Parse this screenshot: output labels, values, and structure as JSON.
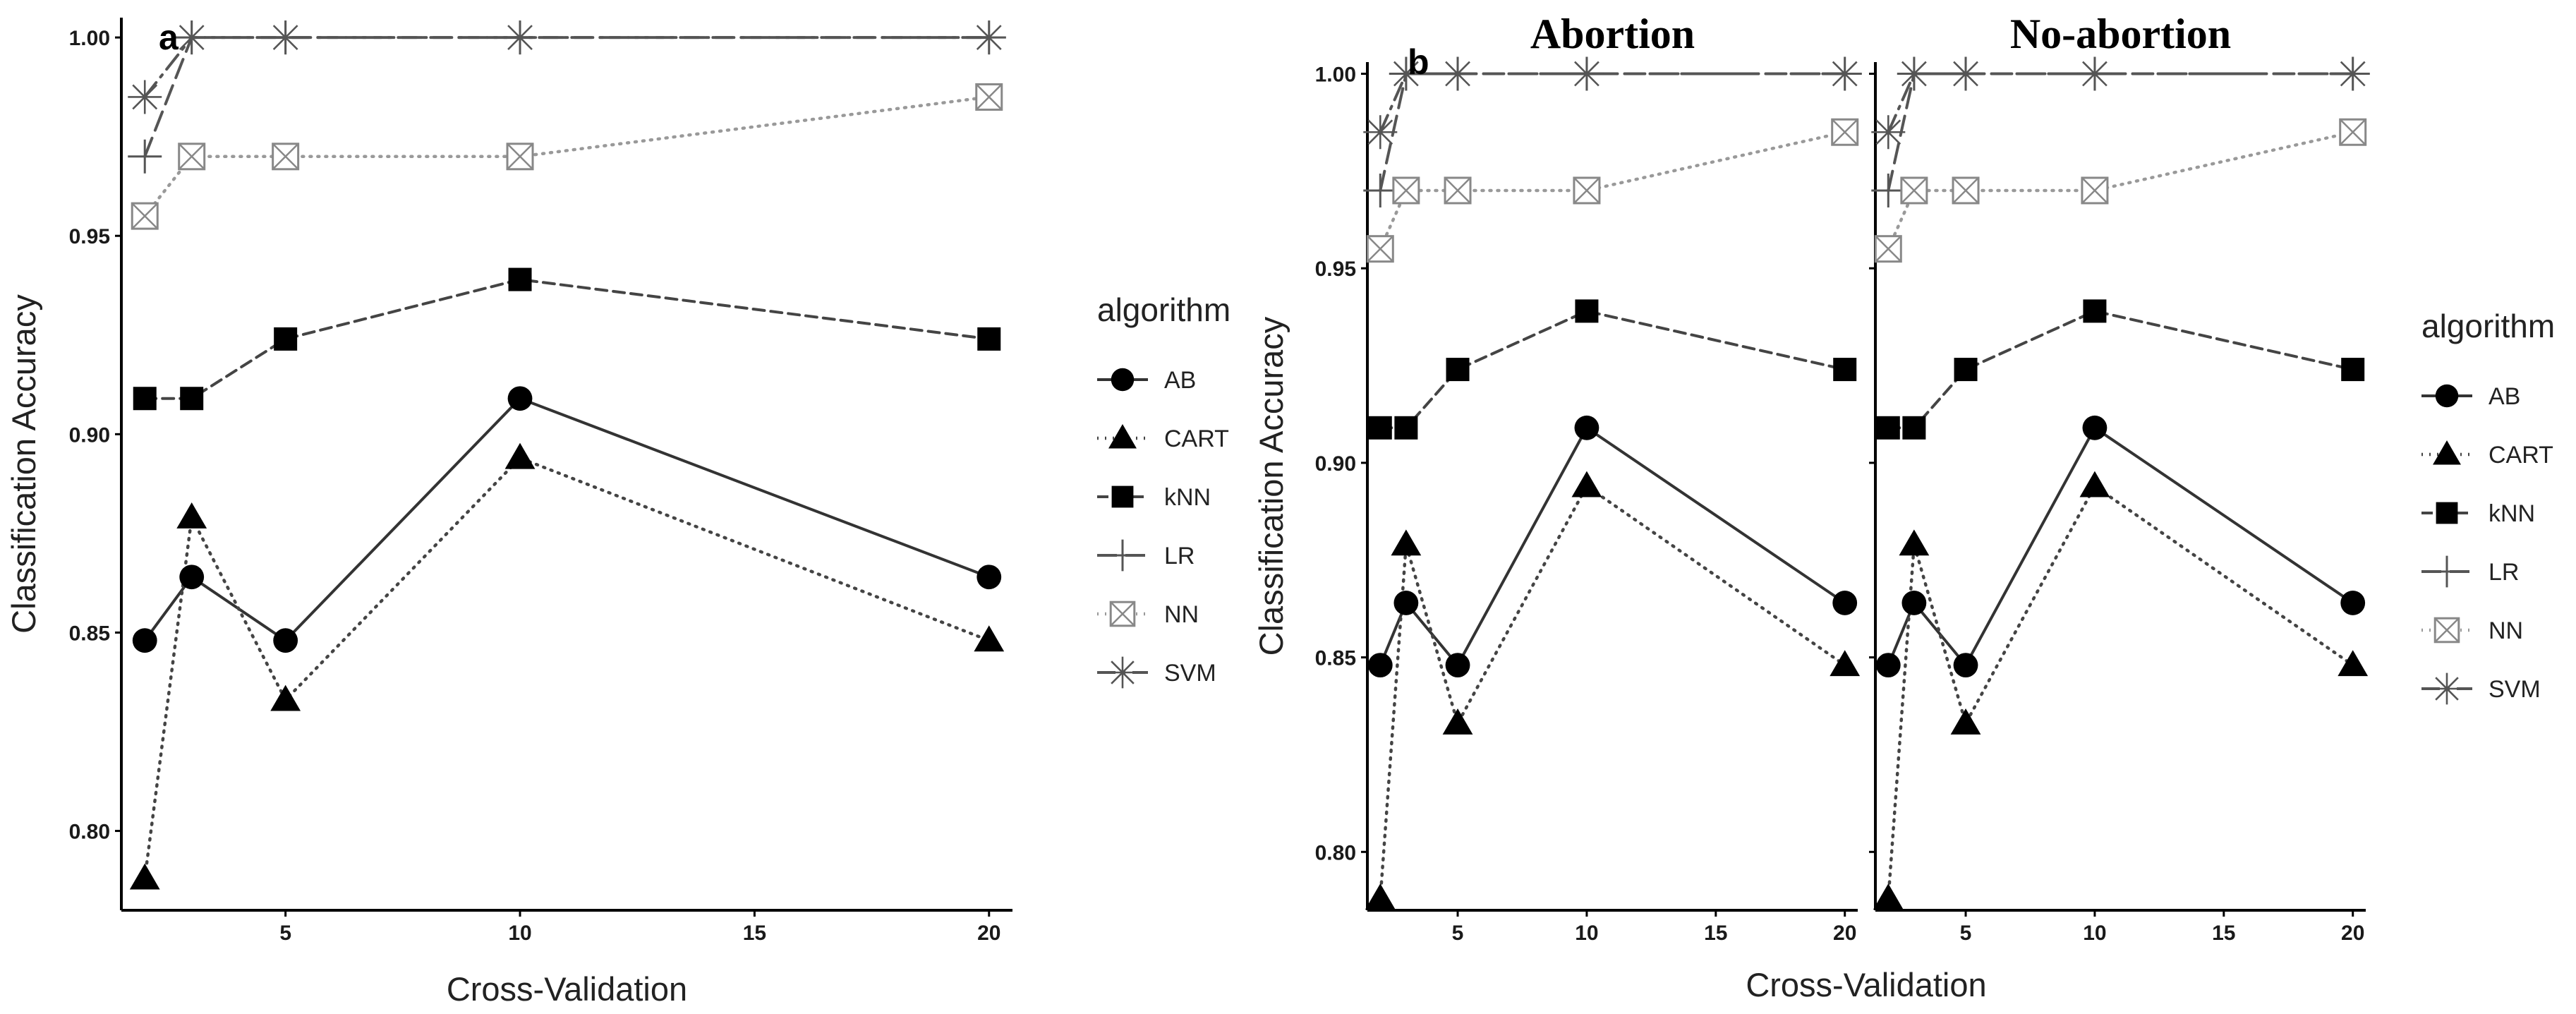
{
  "chart_data": [
    {
      "panel": "a",
      "type": "line",
      "title": "",
      "xlabel": "Cross-Validation",
      "ylabel": "Classification Accuracy",
      "xlim": [
        1.5,
        20.5
      ],
      "ylim": [
        0.78,
        1.005
      ],
      "xticks": [
        5,
        10,
        15,
        20
      ],
      "yticks": [
        0.8,
        0.85,
        0.9,
        0.95,
        1.0
      ],
      "ytick_labels": [
        "0.80",
        "0.85",
        "0.90",
        "0.95",
        "1.00"
      ],
      "legend_title": "algorithm",
      "legend_entries": [
        "AB",
        "CART",
        "kNN",
        "LR",
        "NN",
        "SVM"
      ],
      "legend_placement": "right",
      "series": [
        {
          "name": "AB",
          "marker": "circle",
          "line": "solid",
          "color": "#333333",
          "x": [
            2,
            3,
            5,
            10,
            20
          ],
          "values": [
            0.848,
            0.864,
            0.848,
            0.909,
            0.864
          ]
        },
        {
          "name": "CART",
          "marker": "triangle",
          "line": "dotted",
          "color": "#444444",
          "x": [
            2,
            3,
            5,
            10,
            20
          ],
          "values": [
            0.788,
            0.879,
            0.833,
            0.894,
            0.848
          ]
        },
        {
          "name": "kNN",
          "marker": "square",
          "line": "dashed",
          "color": "#444444",
          "x": [
            2,
            3,
            5,
            10,
            20
          ],
          "values": [
            0.909,
            0.909,
            0.924,
            0.939,
            0.924
          ]
        },
        {
          "name": "LR",
          "marker": "plus",
          "line": "longdash",
          "color": "#555555",
          "x": [
            2,
            3,
            5,
            10,
            20
          ],
          "values": [
            0.97,
            1.0,
            1.0,
            1.0,
            1.0
          ]
        },
        {
          "name": "NN",
          "marker": "boxx",
          "line": "dotted",
          "color": "#999999",
          "x": [
            2,
            3,
            5,
            10,
            20
          ],
          "values": [
            0.955,
            0.97,
            0.97,
            0.97,
            0.985
          ]
        },
        {
          "name": "SVM",
          "marker": "asterisk",
          "line": "dashdot",
          "color": "#555555",
          "x": [
            2,
            3,
            5,
            10,
            20
          ],
          "values": [
            0.985,
            1.0,
            1.0,
            1.0,
            1.0
          ]
        }
      ]
    },
    {
      "panel": "b",
      "type": "line",
      "facets": [
        "Abortion",
        "No-abortion"
      ],
      "xlabel": "Cross-Validation",
      "ylabel": "Classification Accuracy",
      "xlim": [
        1.5,
        20.5
      ],
      "ylim": [
        0.785,
        1.003
      ],
      "xticks": [
        5,
        10,
        15,
        20
      ],
      "yticks": [
        0.8,
        0.85,
        0.9,
        0.95,
        1.0
      ],
      "ytick_labels": [
        "0.80",
        "0.85",
        "0.90",
        "0.95",
        "1.00"
      ],
      "legend_title": "algorithm",
      "legend_entries": [
        "AB",
        "CART",
        "kNN",
        "LR",
        "NN",
        "SVM"
      ],
      "legend_placement": "right",
      "series": [
        {
          "name": "AB",
          "marker": "circle",
          "line": "solid",
          "color": "#333333",
          "x": [
            2,
            3,
            5,
            10,
            20
          ],
          "values": [
            0.848,
            0.864,
            0.848,
            0.909,
            0.864
          ]
        },
        {
          "name": "CART",
          "marker": "triangle",
          "line": "dotted",
          "color": "#444444",
          "x": [
            2,
            3,
            5,
            10,
            20
          ],
          "values": [
            0.788,
            0.879,
            0.833,
            0.894,
            0.848
          ]
        },
        {
          "name": "kNN",
          "marker": "square",
          "line": "dashed",
          "color": "#444444",
          "x": [
            2,
            3,
            5,
            10,
            20
          ],
          "values": [
            0.909,
            0.909,
            0.924,
            0.939,
            0.924
          ]
        },
        {
          "name": "LR",
          "marker": "plus",
          "line": "longdash",
          "color": "#555555",
          "x": [
            2,
            3,
            5,
            10,
            20
          ],
          "values": [
            0.97,
            1.0,
            1.0,
            1.0,
            1.0
          ]
        },
        {
          "name": "NN",
          "marker": "boxx",
          "line": "dotted",
          "color": "#999999",
          "x": [
            2,
            3,
            5,
            10,
            20
          ],
          "values": [
            0.955,
            0.97,
            0.97,
            0.97,
            0.985
          ]
        },
        {
          "name": "SVM",
          "marker": "asterisk",
          "line": "dashdot",
          "color": "#555555",
          "x": [
            2,
            3,
            5,
            10,
            20
          ],
          "values": [
            0.985,
            1.0,
            1.0,
            1.0,
            1.0
          ]
        }
      ]
    }
  ]
}
